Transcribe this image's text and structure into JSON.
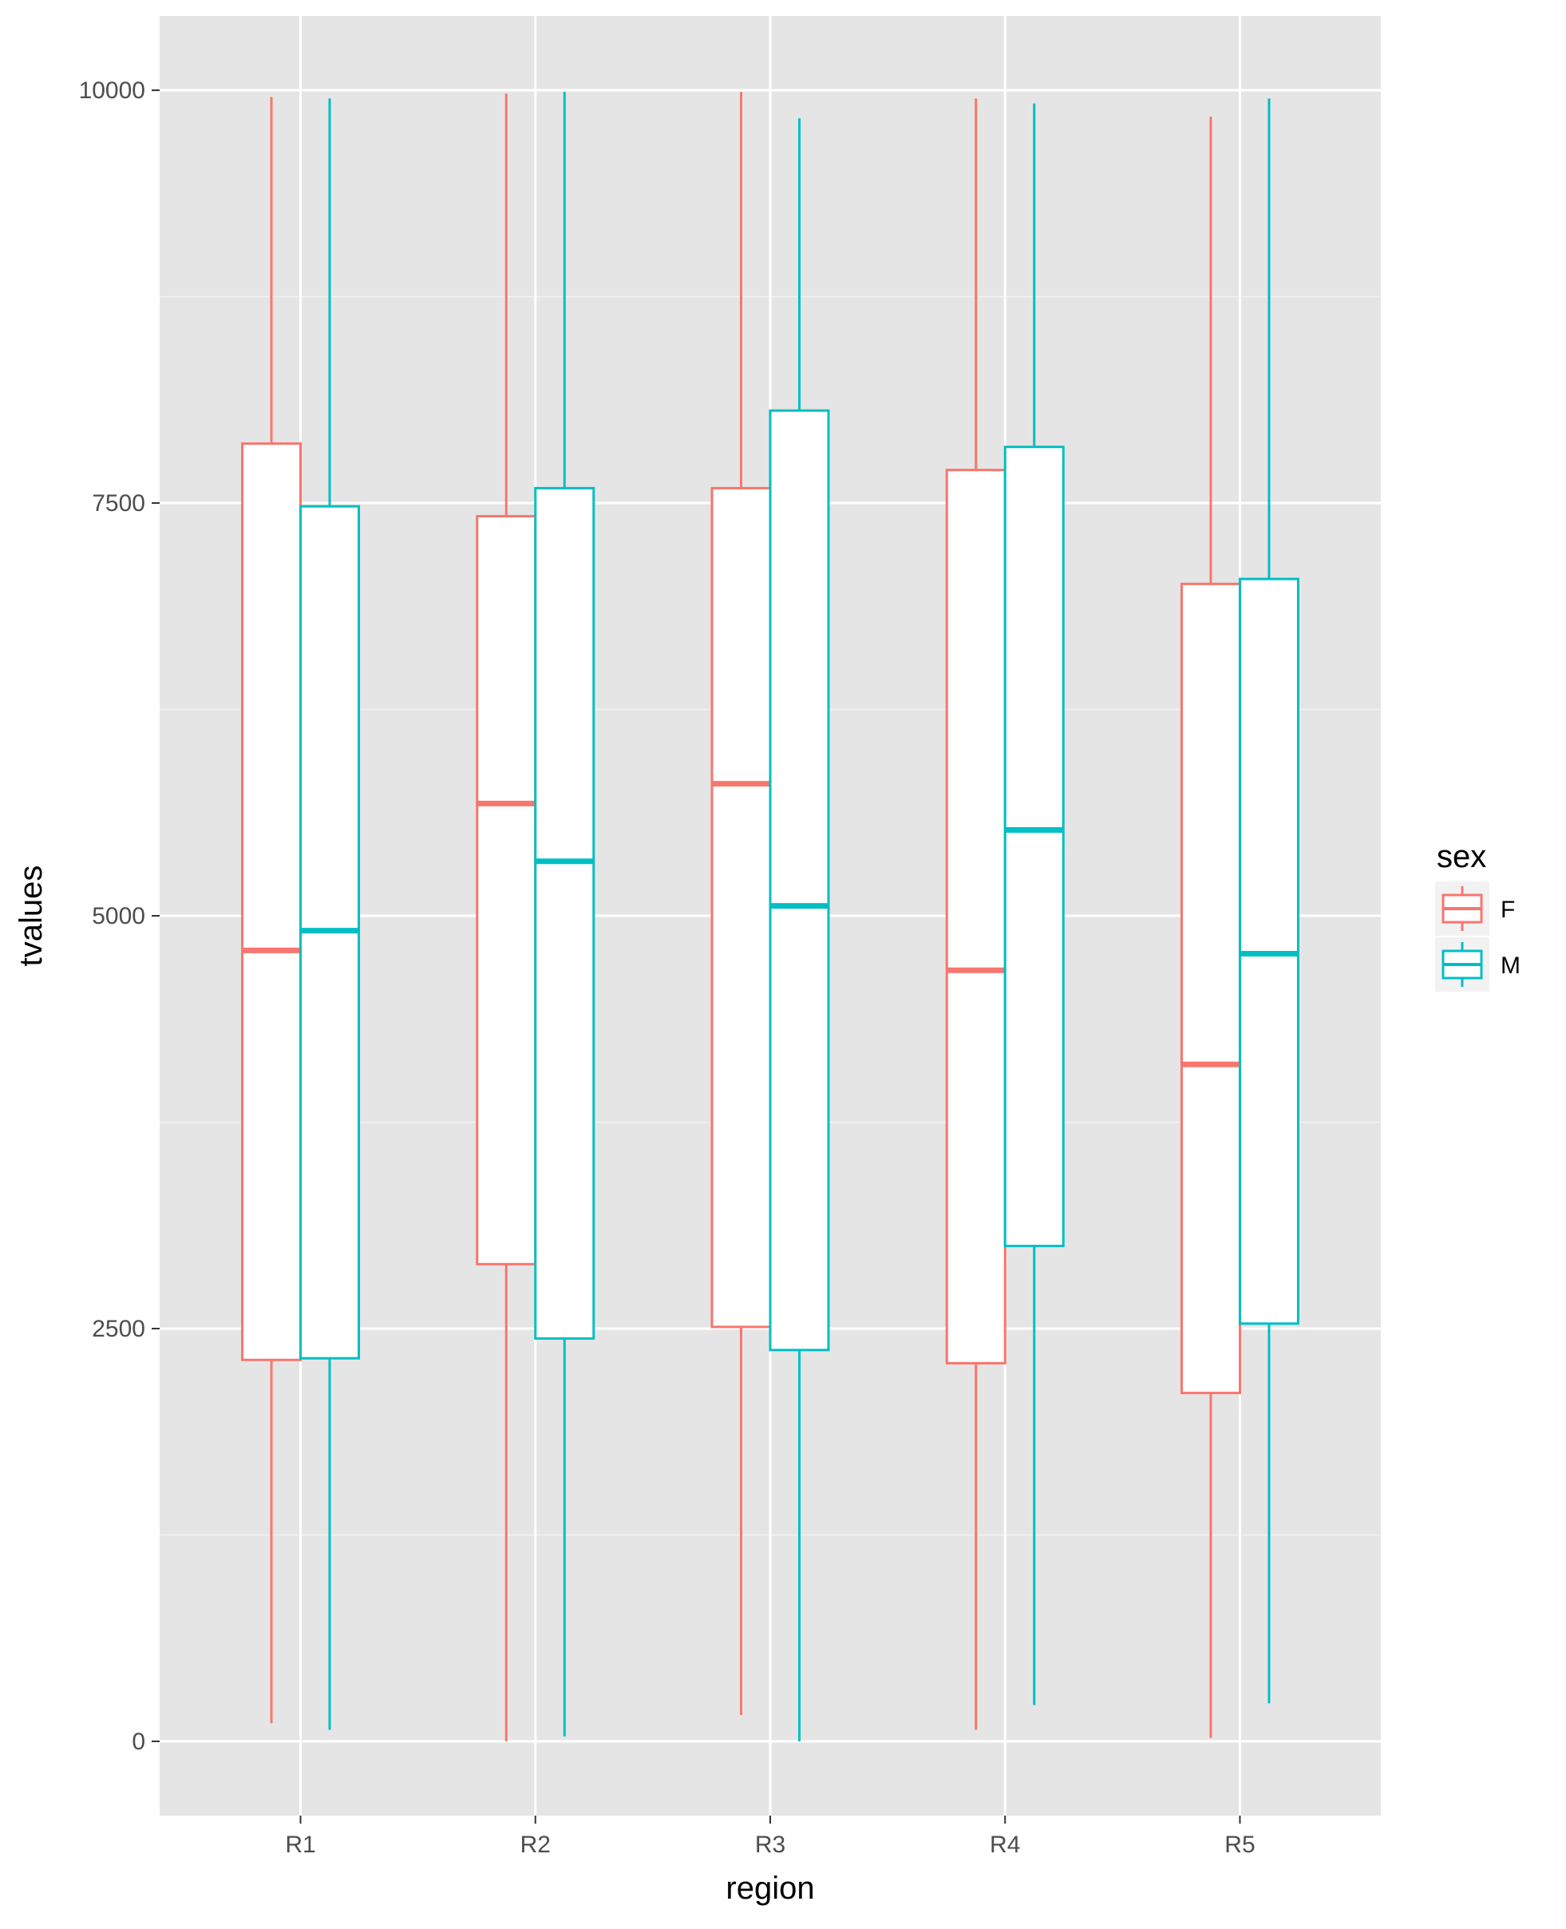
{
  "chart_data": {
    "type": "boxplot",
    "xlabel": "region",
    "ylabel": "tvalues",
    "categories": [
      "R1",
      "R2",
      "R3",
      "R4",
      "R5"
    ],
    "ylim": [
      -450,
      10450
    ],
    "yticks": [
      0,
      2500,
      5000,
      7500,
      10000
    ],
    "ytick_labels": [
      "0",
      "2500",
      "5000",
      "7500",
      "10000"
    ],
    "minor_gridlines": [
      1250,
      3750,
      6250,
      8750
    ],
    "grid": true,
    "legend": {
      "title": "sex",
      "position": "right"
    },
    "series": [
      {
        "name": "F",
        "color": "#F8766D",
        "boxes": [
          {
            "min": 110,
            "q1": 2310,
            "median": 4790,
            "q3": 7860,
            "max": 9960
          },
          {
            "min": 0,
            "q1": 2890,
            "median": 5680,
            "q3": 7420,
            "max": 9980
          },
          {
            "min": 160,
            "q1": 2510,
            "median": 5800,
            "q3": 7590,
            "max": 9990
          },
          {
            "min": 70,
            "q1": 2290,
            "median": 4670,
            "q3": 7700,
            "max": 9950
          },
          {
            "min": 20,
            "q1": 2110,
            "median": 4100,
            "q3": 7010,
            "max": 9840
          }
        ]
      },
      {
        "name": "M",
        "color": "#00BFC4",
        "boxes": [
          {
            "min": 70,
            "q1": 2320,
            "median": 4910,
            "q3": 7480,
            "max": 9950
          },
          {
            "min": 30,
            "q1": 2440,
            "median": 5330,
            "q3": 7590,
            "max": 9990
          },
          {
            "min": 0,
            "q1": 2370,
            "median": 5060,
            "q3": 8060,
            "max": 9830
          },
          {
            "min": 220,
            "q1": 3000,
            "median": 5520,
            "q3": 7840,
            "max": 9920
          },
          {
            "min": 230,
            "q1": 2530,
            "median": 4770,
            "q3": 7040,
            "max": 9950
          }
        ]
      }
    ]
  }
}
